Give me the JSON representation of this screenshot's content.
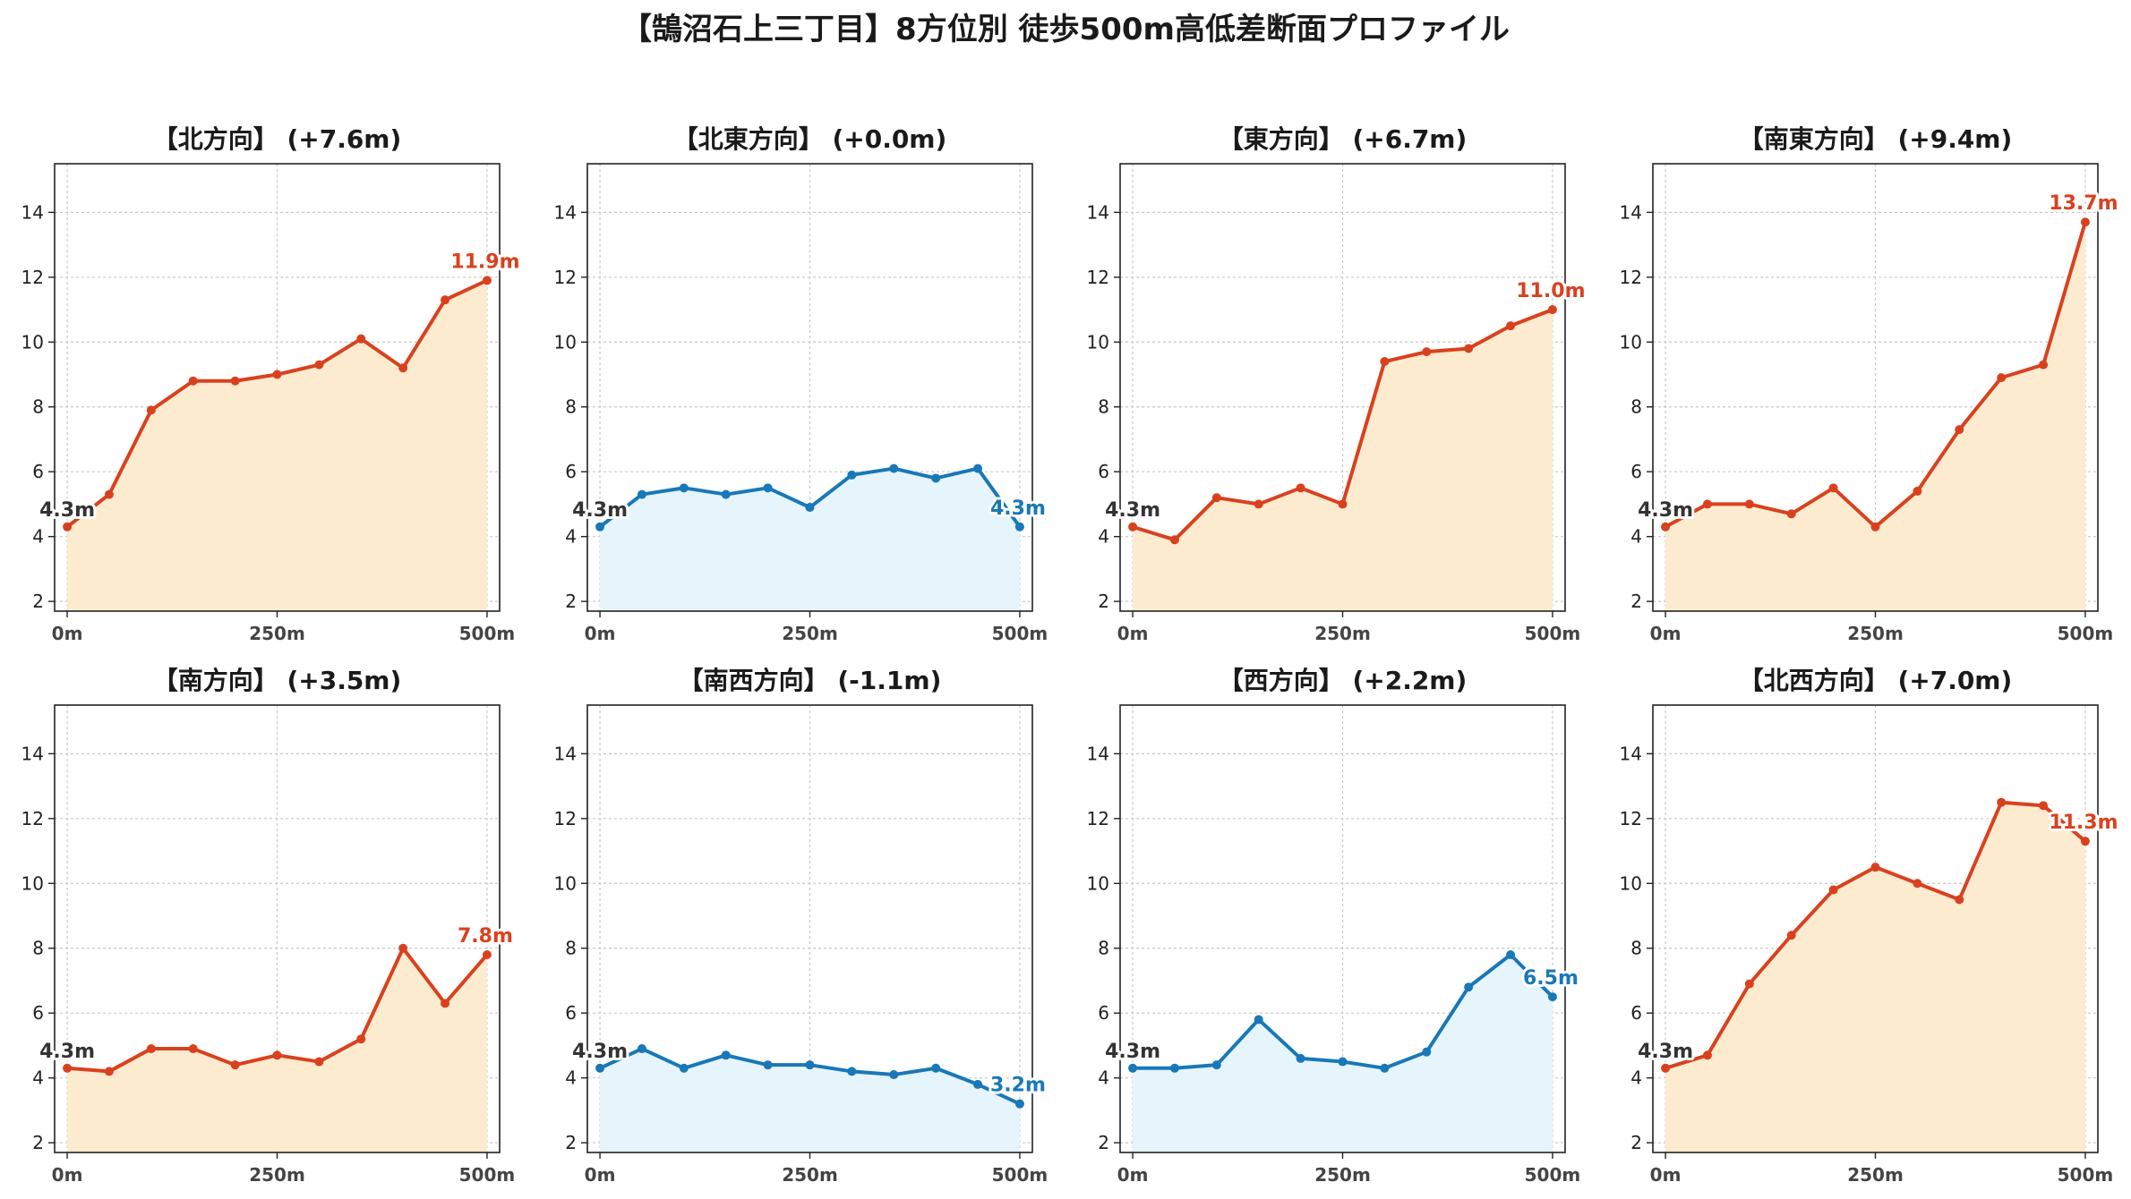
{
  "title": "【鵠沼石上三丁目】8方位別 徒歩500m高低差断面プロファイル",
  "colors": {
    "up_line": "#d9411e",
    "up_fill": "#fdebd0",
    "down_line": "#1878b8",
    "down_fill": "#e6f4fb",
    "start_label": "#333333",
    "grid": "#c8c8c8"
  },
  "chart_data": [
    {
      "type": "area",
      "title": "【北方向】 (+7.6m)",
      "trend": "up",
      "x": [
        0,
        50,
        100,
        150,
        200,
        250,
        300,
        350,
        400,
        450,
        500
      ],
      "y": [
        4.3,
        5.3,
        7.9,
        8.8,
        8.8,
        9.0,
        9.3,
        10.1,
        9.2,
        11.3,
        11.9
      ],
      "start_label": "4.3m",
      "end_label": "11.9m",
      "xticks": [
        "0m",
        "250m",
        "500m"
      ],
      "xtick_values": [
        0,
        250,
        500
      ],
      "yticks": [
        2,
        4,
        6,
        8,
        10,
        12,
        14
      ],
      "ylim": [
        1.7,
        15.5
      ],
      "xlim": [
        -15,
        515
      ],
      "grid": true
    },
    {
      "type": "area",
      "title": "【北東方向】 (+0.0m)",
      "trend": "down",
      "x": [
        0,
        50,
        100,
        150,
        200,
        250,
        300,
        350,
        400,
        450,
        500
      ],
      "y": [
        4.3,
        5.3,
        5.5,
        5.3,
        5.5,
        4.9,
        5.9,
        6.1,
        5.8,
        6.1,
        4.3
      ],
      "start_label": "4.3m",
      "end_label": "4.3m",
      "xticks": [
        "0m",
        "250m",
        "500m"
      ],
      "xtick_values": [
        0,
        250,
        500
      ],
      "yticks": [
        2,
        4,
        6,
        8,
        10,
        12,
        14
      ],
      "ylim": [
        1.7,
        15.5
      ],
      "xlim": [
        -15,
        515
      ],
      "grid": true
    },
    {
      "type": "area",
      "title": "【東方向】 (+6.7m)",
      "trend": "up",
      "x": [
        0,
        50,
        100,
        150,
        200,
        250,
        300,
        350,
        400,
        450,
        500
      ],
      "y": [
        4.3,
        3.9,
        5.2,
        5.0,
        5.5,
        5.0,
        9.4,
        9.7,
        9.8,
        10.5,
        11.0
      ],
      "start_label": "4.3m",
      "end_label": "11.0m",
      "xticks": [
        "0m",
        "250m",
        "500m"
      ],
      "xtick_values": [
        0,
        250,
        500
      ],
      "yticks": [
        2,
        4,
        6,
        8,
        10,
        12,
        14
      ],
      "ylim": [
        1.7,
        15.5
      ],
      "xlim": [
        -15,
        515
      ],
      "grid": true
    },
    {
      "type": "area",
      "title": "【南東方向】 (+9.4m)",
      "trend": "up",
      "x": [
        0,
        50,
        100,
        150,
        200,
        250,
        300,
        350,
        400,
        450,
        500
      ],
      "y": [
        4.3,
        5.0,
        5.0,
        4.7,
        5.5,
        4.3,
        5.4,
        7.3,
        8.9,
        9.3,
        13.7
      ],
      "start_label": "4.3m",
      "end_label": "13.7m",
      "xticks": [
        "0m",
        "250m",
        "500m"
      ],
      "xtick_values": [
        0,
        250,
        500
      ],
      "yticks": [
        2,
        4,
        6,
        8,
        10,
        12,
        14
      ],
      "ylim": [
        1.7,
        15.5
      ],
      "xlim": [
        -15,
        515
      ],
      "grid": true
    },
    {
      "type": "area",
      "title": "【南方向】 (+3.5m)",
      "trend": "up",
      "x": [
        0,
        50,
        100,
        150,
        200,
        250,
        300,
        350,
        400,
        450,
        500
      ],
      "y": [
        4.3,
        4.2,
        4.9,
        4.9,
        4.4,
        4.7,
        4.5,
        5.2,
        8.0,
        6.3,
        7.8
      ],
      "start_label": "4.3m",
      "end_label": "7.8m",
      "xticks": [
        "0m",
        "250m",
        "500m"
      ],
      "xtick_values": [
        0,
        250,
        500
      ],
      "yticks": [
        2,
        4,
        6,
        8,
        10,
        12,
        14
      ],
      "ylim": [
        1.7,
        15.5
      ],
      "xlim": [
        -15,
        515
      ],
      "grid": true
    },
    {
      "type": "area",
      "title": "【南西方向】 (-1.1m)",
      "trend": "down",
      "x": [
        0,
        50,
        100,
        150,
        200,
        250,
        300,
        350,
        400,
        450,
        500
      ],
      "y": [
        4.3,
        4.9,
        4.3,
        4.7,
        4.4,
        4.4,
        4.2,
        4.1,
        4.3,
        3.8,
        3.2
      ],
      "start_label": "4.3m",
      "end_label": "3.2m",
      "xticks": [
        "0m",
        "250m",
        "500m"
      ],
      "xtick_values": [
        0,
        250,
        500
      ],
      "yticks": [
        2,
        4,
        6,
        8,
        10,
        12,
        14
      ],
      "ylim": [
        1.7,
        15.5
      ],
      "xlim": [
        -15,
        515
      ],
      "grid": true
    },
    {
      "type": "area",
      "title": "【西方向】 (+2.2m)",
      "trend": "down",
      "x": [
        0,
        50,
        100,
        150,
        200,
        250,
        300,
        350,
        400,
        450,
        500
      ],
      "y": [
        4.3,
        4.3,
        4.4,
        5.8,
        4.6,
        4.5,
        4.3,
        4.8,
        6.8,
        7.8,
        6.5
      ],
      "start_label": "4.3m",
      "end_label": "6.5m",
      "xticks": [
        "0m",
        "250m",
        "500m"
      ],
      "xtick_values": [
        0,
        250,
        500
      ],
      "yticks": [
        2,
        4,
        6,
        8,
        10,
        12,
        14
      ],
      "ylim": [
        1.7,
        15.5
      ],
      "xlim": [
        -15,
        515
      ],
      "grid": true
    },
    {
      "type": "area",
      "title": "【北西方向】 (+7.0m)",
      "trend": "up",
      "x": [
        0,
        50,
        100,
        150,
        200,
        250,
        300,
        350,
        400,
        450,
        500
      ],
      "y": [
        4.3,
        4.7,
        6.9,
        8.4,
        9.8,
        10.5,
        10.0,
        9.5,
        12.5,
        12.4,
        11.3
      ],
      "start_label": "4.3m",
      "end_label": "11.3m",
      "xticks": [
        "0m",
        "250m",
        "500m"
      ],
      "xtick_values": [
        0,
        250,
        500
      ],
      "yticks": [
        2,
        4,
        6,
        8,
        10,
        12,
        14
      ],
      "ylim": [
        1.7,
        15.5
      ],
      "xlim": [
        -15,
        515
      ],
      "grid": true
    }
  ]
}
